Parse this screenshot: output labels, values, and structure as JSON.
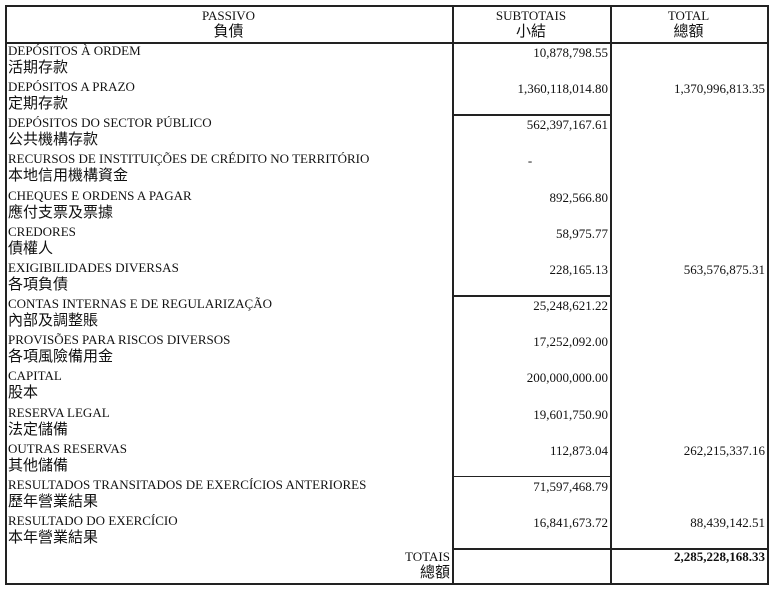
{
  "table": {
    "header": [
      {
        "pt": "PASSIVO",
        "zh": "負債"
      },
      {
        "pt": "SUBTOTAIS",
        "zh": "小結"
      },
      {
        "pt": "TOTAL",
        "zh": "總額"
      }
    ],
    "rows": [
      {
        "pt": "DEPÓSITOS À ORDEM",
        "zh": "活期存款",
        "subtotal": "10,878,798.55"
      },
      {
        "pt": "DEPÓSITOS A PRAZO",
        "zh": "定期存款",
        "subtotal": "1,360,118,014.80",
        "total": "1,370,996,813.35"
      },
      {
        "pt": "DEPÓSITOS DO SECTOR PÚBLICO",
        "zh": "公共機構存款",
        "subtotal": "562,397,167.61"
      },
      {
        "pt": "RECURSOS DE INSTITUIÇÕES DE CRÉDITO NO TERRITÓRIO",
        "zh": "本地信用機構資金",
        "subtotal": "-"
      },
      {
        "pt": "CHEQUES E ORDENS A PAGAR",
        "zh": "應付支票及票據",
        "subtotal": "892,566.80"
      },
      {
        "pt": "CREDORES",
        "zh": "債權人",
        "subtotal": "58,975.77"
      },
      {
        "pt": "EXIGIBILIDADES DIVERSAS",
        "zh": "各項負債",
        "subtotal": "228,165.13",
        "total": "563,576,875.31"
      },
      {
        "pt": "CONTAS INTERNAS E DE REGULARIZAÇÃO",
        "zh": "內部及調整賬",
        "subtotal": "25,248,621.22"
      },
      {
        "pt": "PROVISÕES PARA RISCOS DIVERSOS",
        "zh": "各項風險備用金",
        "subtotal": "17,252,092.00"
      },
      {
        "pt": "CAPITAL",
        "zh": "股本",
        "subtotal": "200,000,000.00"
      },
      {
        "pt": "RESERVA LEGAL",
        "zh": "法定儲備",
        "subtotal": "19,601,750.90"
      },
      {
        "pt": "OUTRAS RESERVAS",
        "zh": "其他儲備",
        "subtotal": "112,873.04",
        "total": "262,215,337.16"
      },
      {
        "pt": "RESULTADOS TRANSITADOS DE EXERCÍCIOS ANTERIORES",
        "zh": "歷年營業結果",
        "subtotal": "71,597,468.79"
      },
      {
        "pt": "RESULTADO DO EXERCÍCIO",
        "zh": "本年營業結果",
        "subtotal": "16,841,673.72",
        "total": "88,439,142.51"
      }
    ],
    "totals": {
      "pt": "TOTAIS",
      "zh": "總額",
      "total": "2,285,228,168.33"
    }
  }
}
